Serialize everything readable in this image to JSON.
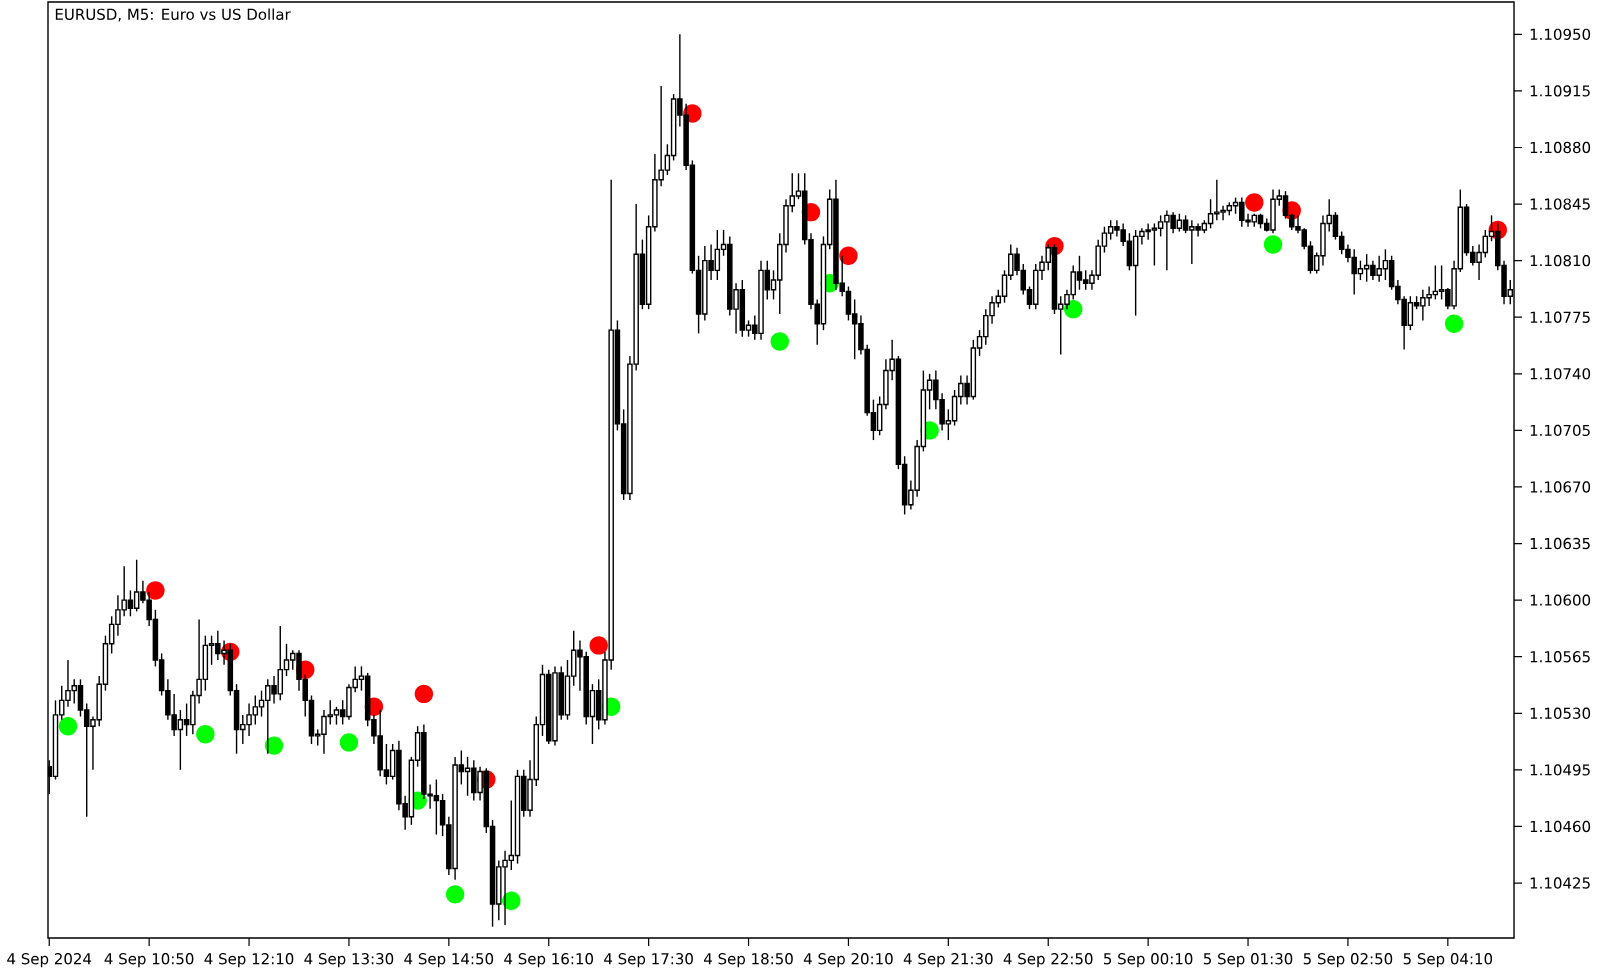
{
  "chart_data": {
    "type": "candlestick",
    "title": "EURUSD, M5: Euro vs US Dollar",
    "x": [
      "2024-09-04T09:30",
      "2024-09-04T09:35",
      "2024-09-04T09:40",
      "2024-09-04T09:45",
      "2024-09-04T09:50",
      "2024-09-04T09:55",
      "2024-09-04T10:00",
      "2024-09-04T10:05",
      "2024-09-04T10:10",
      "2024-09-04T10:15",
      "2024-09-04T10:20",
      "2024-09-04T10:25",
      "2024-09-04T10:30",
      "2024-09-04T10:35",
      "2024-09-04T10:40",
      "2024-09-04T10:45",
      "2024-09-04T10:50",
      "2024-09-04T10:55",
      "2024-09-04T11:00",
      "2024-09-04T11:05",
      "2024-09-04T11:10",
      "2024-09-04T11:15",
      "2024-09-04T11:20",
      "2024-09-04T11:25",
      "2024-09-04T11:30",
      "2024-09-04T11:35",
      "2024-09-04T11:40",
      "2024-09-04T11:45",
      "2024-09-04T11:50",
      "2024-09-04T11:55",
      "2024-09-04T12:00",
      "2024-09-04T12:05",
      "2024-09-04T12:10",
      "2024-09-04T12:15",
      "2024-09-04T12:20",
      "2024-09-04T12:25",
      "2024-09-04T12:30",
      "2024-09-04T12:35",
      "2024-09-04T12:40",
      "2024-09-04T12:45",
      "2024-09-04T12:50",
      "2024-09-04T12:55",
      "2024-09-04T13:00",
      "2024-09-04T13:05",
      "2024-09-04T13:10",
      "2024-09-04T13:15",
      "2024-09-04T13:20",
      "2024-09-04T13:25",
      "2024-09-04T13:30",
      "2024-09-04T13:35",
      "2024-09-04T13:40",
      "2024-09-04T13:45",
      "2024-09-04T13:50",
      "2024-09-04T13:55",
      "2024-09-04T14:00",
      "2024-09-04T14:05",
      "2024-09-04T14:10",
      "2024-09-04T14:15",
      "2024-09-04T14:20",
      "2024-09-04T14:25",
      "2024-09-04T14:30",
      "2024-09-04T14:35",
      "2024-09-04T14:40",
      "2024-09-04T14:45",
      "2024-09-04T14:50",
      "2024-09-04T14:55",
      "2024-09-04T15:00",
      "2024-09-04T15:05",
      "2024-09-04T15:10",
      "2024-09-04T15:15",
      "2024-09-04T15:20",
      "2024-09-04T15:25",
      "2024-09-04T15:30",
      "2024-09-04T15:35",
      "2024-09-04T15:40",
      "2024-09-04T15:45",
      "2024-09-04T15:50",
      "2024-09-04T15:55",
      "2024-09-04T16:00",
      "2024-09-04T16:05",
      "2024-09-04T16:10",
      "2024-09-04T16:15",
      "2024-09-04T16:20",
      "2024-09-04T16:25",
      "2024-09-04T16:30",
      "2024-09-04T16:35",
      "2024-09-04T16:40",
      "2024-09-04T16:45",
      "2024-09-04T16:50",
      "2024-09-04T16:55",
      "2024-09-04T17:00",
      "2024-09-04T17:05",
      "2024-09-04T17:10",
      "2024-09-04T17:15",
      "2024-09-04T17:20",
      "2024-09-04T17:25",
      "2024-09-04T17:30",
      "2024-09-04T17:35",
      "2024-09-04T17:40",
      "2024-09-04T17:45",
      "2024-09-04T17:50",
      "2024-09-04T17:55",
      "2024-09-04T18:00",
      "2024-09-04T18:05",
      "2024-09-04T18:10",
      "2024-09-04T18:15",
      "2024-09-04T18:20",
      "2024-09-04T18:25",
      "2024-09-04T18:30",
      "2024-09-04T18:35",
      "2024-09-04T18:40",
      "2024-09-04T18:45",
      "2024-09-04T18:50",
      "2024-09-04T18:55",
      "2024-09-04T19:00",
      "2024-09-04T19:05",
      "2024-09-04T19:10",
      "2024-09-04T19:15",
      "2024-09-04T19:20",
      "2024-09-04T19:25",
      "2024-09-04T19:30",
      "2024-09-04T19:35",
      "2024-09-04T19:40",
      "2024-09-04T19:45",
      "2024-09-04T19:50",
      "2024-09-04T19:55",
      "2024-09-04T20:00",
      "2024-09-04T20:05",
      "2024-09-04T20:10",
      "2024-09-04T20:15",
      "2024-09-04T20:20",
      "2024-09-04T20:25",
      "2024-09-04T20:30",
      "2024-09-04T20:35",
      "2024-09-04T20:40",
      "2024-09-04T20:45",
      "2024-09-04T20:50",
      "2024-09-04T20:55",
      "2024-09-04T21:00",
      "2024-09-04T21:05",
      "2024-09-04T21:10",
      "2024-09-04T21:15",
      "2024-09-04T21:20",
      "2024-09-04T21:25",
      "2024-09-04T21:30",
      "2024-09-04T21:35",
      "2024-09-04T21:40",
      "2024-09-04T21:45",
      "2024-09-04T21:50",
      "2024-09-04T21:55",
      "2024-09-04T22:00",
      "2024-09-04T22:05",
      "2024-09-04T22:10",
      "2024-09-04T22:15",
      "2024-09-04T22:20",
      "2024-09-04T22:25",
      "2024-09-04T22:30",
      "2024-09-04T22:35",
      "2024-09-04T22:40",
      "2024-09-04T22:45",
      "2024-09-04T22:50",
      "2024-09-04T22:55",
      "2024-09-04T23:00",
      "2024-09-04T23:05",
      "2024-09-04T23:10",
      "2024-09-04T23:15",
      "2024-09-04T23:20",
      "2024-09-04T23:25",
      "2024-09-04T23:30",
      "2024-09-04T23:35",
      "2024-09-04T23:40",
      "2024-09-04T23:45",
      "2024-09-04T23:50",
      "2024-09-04T23:55",
      "2024-09-05T00:00",
      "2024-09-05T00:05",
      "2024-09-05T00:10",
      "2024-09-05T00:15",
      "2024-09-05T00:20",
      "2024-09-05T00:25",
      "2024-09-05T00:30",
      "2024-09-05T00:35",
      "2024-09-05T00:40",
      "2024-09-05T00:45",
      "2024-09-05T00:50",
      "2024-09-05T00:55",
      "2024-09-05T01:00",
      "2024-09-05T01:05",
      "2024-09-05T01:10",
      "2024-09-05T01:15",
      "2024-09-05T01:20",
      "2024-09-05T01:25",
      "2024-09-05T01:30",
      "2024-09-05T01:35",
      "2024-09-05T01:40",
      "2024-09-05T01:45",
      "2024-09-05T01:50",
      "2024-09-05T01:55",
      "2024-09-05T02:00",
      "2024-09-05T02:05",
      "2024-09-05T02:10",
      "2024-09-05T02:15",
      "2024-09-05T02:20",
      "2024-09-05T02:25",
      "2024-09-05T02:30",
      "2024-09-05T02:35",
      "2024-09-05T02:40",
      "2024-09-05T02:45",
      "2024-09-05T02:50",
      "2024-09-05T02:55",
      "2024-09-05T03:00",
      "2024-09-05T03:05",
      "2024-09-05T03:10",
      "2024-09-05T03:15",
      "2024-09-05T03:20",
      "2024-09-05T03:25",
      "2024-09-05T03:30",
      "2024-09-05T03:35",
      "2024-09-05T03:40",
      "2024-09-05T03:45",
      "2024-09-05T03:50",
      "2024-09-05T03:55",
      "2024-09-05T04:00",
      "2024-09-05T04:05",
      "2024-09-05T04:10",
      "2024-09-05T04:15",
      "2024-09-05T04:20",
      "2024-09-05T04:25",
      "2024-09-05T04:30",
      "2024-09-05T04:35",
      "2024-09-05T04:40",
      "2024-09-05T04:45",
      "2024-09-05T04:50",
      "2024-09-05T04:55",
      "2024-09-05T05:00"
    ],
    "ohlc": [
      [
        1.10497,
        1.10501,
        1.1048,
        1.10491
      ],
      [
        1.10491,
        1.10538,
        1.10489,
        1.10529
      ],
      [
        1.10529,
        1.10547,
        1.10526,
        1.10538
      ],
      [
        1.10538,
        1.10563,
        1.10534,
        1.10544
      ],
      [
        1.10544,
        1.10551,
        1.10536,
        1.10547
      ],
      [
        1.10547,
        1.10551,
        1.10528,
        1.10532
      ],
      [
        1.10532,
        1.10536,
        1.10466,
        1.10522
      ],
      [
        1.10522,
        1.10528,
        1.10495,
        1.10526
      ],
      [
        1.10526,
        1.10553,
        1.10522,
        1.10548
      ],
      [
        1.10548,
        1.10578,
        1.10544,
        1.10573
      ],
      [
        1.10573,
        1.1059,
        1.10567,
        1.10585
      ],
      [
        1.10585,
        1.10603,
        1.10578,
        1.10594
      ],
      [
        1.10594,
        1.10621,
        1.1059,
        1.106
      ],
      [
        1.106,
        1.10606,
        1.1059,
        1.10595
      ],
      [
        1.10595,
        1.10625,
        1.10593,
        1.10605
      ],
      [
        1.10605,
        1.10612,
        1.10598,
        1.106
      ],
      [
        1.106,
        1.10605,
        1.10584,
        1.10588
      ],
      [
        1.10588,
        1.10594,
        1.10559,
        1.10563
      ],
      [
        1.10563,
        1.10567,
        1.10541,
        1.10544
      ],
      [
        1.10544,
        1.10551,
        1.10526,
        1.10529
      ],
      [
        1.10529,
        1.10542,
        1.10516,
        1.1052
      ],
      [
        1.1052,
        1.10532,
        1.10495,
        1.10526
      ],
      [
        1.10526,
        1.10536,
        1.10516,
        1.10523
      ],
      [
        1.10523,
        1.10544,
        1.10517,
        1.10541
      ],
      [
        1.10541,
        1.10588,
        1.10536,
        1.10551
      ],
      [
        1.10551,
        1.10578,
        1.10544,
        1.10572
      ],
      [
        1.10572,
        1.10578,
        1.1056,
        1.10573
      ],
      [
        1.10573,
        1.10581,
        1.10563,
        1.10567
      ],
      [
        1.10567,
        1.10575,
        1.1056,
        1.10569
      ],
      [
        1.10569,
        1.10573,
        1.10541,
        1.10544
      ],
      [
        1.10544,
        1.10548,
        1.10505,
        1.1052
      ],
      [
        1.1052,
        1.10529,
        1.10511,
        1.10523
      ],
      [
        1.10523,
        1.10536,
        1.10516,
        1.10529
      ],
      [
        1.10529,
        1.10541,
        1.10523,
        1.10534
      ],
      [
        1.10534,
        1.10544,
        1.10528,
        1.10538
      ],
      [
        1.10538,
        1.10551,
        1.10505,
        1.10547
      ],
      [
        1.10547,
        1.10553,
        1.10536,
        1.10542
      ],
      [
        1.10542,
        1.10584,
        1.10538,
        1.10557
      ],
      [
        1.10557,
        1.10573,
        1.10553,
        1.10563
      ],
      [
        1.10563,
        1.10569,
        1.10557,
        1.10567
      ],
      [
        1.10567,
        1.10569,
        1.10544,
        1.10551
      ],
      [
        1.10551,
        1.10554,
        1.10528,
        1.10538
      ],
      [
        1.10538,
        1.10541,
        1.10511,
        1.10516
      ],
      [
        1.10516,
        1.1052,
        1.1051,
        1.10517
      ],
      [
        1.10517,
        1.10532,
        1.10505,
        1.10528
      ],
      [
        1.10528,
        1.10538,
        1.10523,
        1.10529
      ],
      [
        1.10529,
        1.10534,
        1.10523,
        1.10532
      ],
      [
        1.10532,
        1.10538,
        1.10523,
        1.10528
      ],
      [
        1.10528,
        1.10548,
        1.10526,
        1.10546
      ],
      [
        1.10546,
        1.10559,
        1.10543,
        1.10551
      ],
      [
        1.10551,
        1.10559,
        1.10544,
        1.10553
      ],
      [
        1.10553,
        1.10555,
        1.10522,
        1.10526
      ],
      [
        1.10526,
        1.10529,
        1.10511,
        1.10516
      ],
      [
        1.10516,
        1.10532,
        1.10491,
        1.10495
      ],
      [
        1.10495,
        1.10511,
        1.10486,
        1.10491
      ],
      [
        1.10491,
        1.10511,
        1.10489,
        1.10507
      ],
      [
        1.10507,
        1.10513,
        1.1047,
        1.10474
      ],
      [
        1.10474,
        1.10479,
        1.10458,
        1.10466
      ],
      [
        1.10466,
        1.10503,
        1.10461,
        1.10501
      ],
      [
        1.10501,
        1.10522,
        1.10497,
        1.10518
      ],
      [
        1.10518,
        1.10523,
        1.10477,
        1.1048
      ],
      [
        1.1048,
        1.10486,
        1.10471,
        1.10479
      ],
      [
        1.10479,
        1.10489,
        1.10455,
        1.10476
      ],
      [
        1.10476,
        1.1048,
        1.10454,
        1.10461
      ],
      [
        1.10461,
        1.10466,
        1.1043,
        1.10434
      ],
      [
        1.10434,
        1.10503,
        1.10427,
        1.10498
      ],
      [
        1.10498,
        1.10507,
        1.10486,
        1.10494
      ],
      [
        1.10494,
        1.10503,
        1.10479,
        1.10496
      ],
      [
        1.10496,
        1.10501,
        1.10476,
        1.10481
      ],
      [
        1.10481,
        1.10497,
        1.10476,
        1.10494
      ],
      [
        1.10494,
        1.10496,
        1.10456,
        1.1046
      ],
      [
        1.1046,
        1.10464,
        1.10398,
        1.10412
      ],
      [
        1.10412,
        1.10439,
        1.10402,
        1.10435
      ],
      [
        1.10435,
        1.10445,
        1.10399,
        1.10439
      ],
      [
        1.10439,
        1.10476,
        1.10433,
        1.10442
      ],
      [
        1.10442,
        1.10495,
        1.10437,
        1.10491
      ],
      [
        1.10491,
        1.10495,
        1.10466,
        1.1047
      ],
      [
        1.1047,
        1.10501,
        1.10466,
        1.10489
      ],
      [
        1.10489,
        1.10528,
        1.10485,
        1.10523
      ],
      [
        1.10523,
        1.1056,
        1.10516,
        1.10554
      ],
      [
        1.10554,
        1.10557,
        1.10511,
        1.10513
      ],
      [
        1.10513,
        1.10559,
        1.1051,
        1.10555
      ],
      [
        1.10555,
        1.10559,
        1.10526,
        1.10529
      ],
      [
        1.10529,
        1.10563,
        1.10526,
        1.10553
      ],
      [
        1.10553,
        1.10581,
        1.10547,
        1.10569
      ],
      [
        1.10569,
        1.10575,
        1.10544,
        1.10565
      ],
      [
        1.10565,
        1.10568,
        1.10523,
        1.10528
      ],
      [
        1.10528,
        1.10548,
        1.10511,
        1.10544
      ],
      [
        1.10544,
        1.10551,
        1.1052,
        1.10526
      ],
      [
        1.10526,
        1.10568,
        1.10523,
        1.10563
      ],
      [
        1.10563,
        1.1086,
        1.10557,
        1.10767
      ],
      [
        1.10767,
        1.10773,
        1.10705,
        1.10709
      ],
      [
        1.10709,
        1.10718,
        1.10662,
        1.10666
      ],
      [
        1.10666,
        1.10751,
        1.10662,
        1.10746
      ],
      [
        1.10746,
        1.10845,
        1.10742,
        1.10814
      ],
      [
        1.10814,
        1.10823,
        1.1078,
        1.10783
      ],
      [
        1.10783,
        1.10838,
        1.1078,
        1.10831
      ],
      [
        1.10831,
        1.10876,
        1.10828,
        1.1086
      ],
      [
        1.1086,
        1.10918,
        1.10856,
        1.10866
      ],
      [
        1.10866,
        1.10882,
        1.10863,
        1.10875
      ],
      [
        1.10875,
        1.10913,
        1.10872,
        1.1091
      ],
      [
        1.1091,
        1.1095,
        1.10893,
        1.109
      ],
      [
        1.109,
        1.10907,
        1.10866,
        1.10869
      ],
      [
        1.10869,
        1.10872,
        1.10802,
        1.10804
      ],
      [
        1.10804,
        1.10813,
        1.10765,
        1.10777
      ],
      [
        1.10777,
        1.10819,
        1.10773,
        1.1081
      ],
      [
        1.1081,
        1.1082,
        1.10798,
        1.10804
      ],
      [
        1.10804,
        1.10829,
        1.10798,
        1.10817
      ],
      [
        1.10817,
        1.10829,
        1.10813,
        1.1082
      ],
      [
        1.1082,
        1.10825,
        1.10776,
        1.1078
      ],
      [
        1.1078,
        1.10796,
        1.10765,
        1.10792
      ],
      [
        1.10792,
        1.10798,
        1.10763,
        1.10767
      ],
      [
        1.10767,
        1.10773,
        1.10763,
        1.1077
      ],
      [
        1.1077,
        1.10776,
        1.10761,
        1.10765
      ],
      [
        1.10765,
        1.1081,
        1.10761,
        1.10804
      ],
      [
        1.10804,
        1.1081,
        1.10786,
        1.10792
      ],
      [
        1.10792,
        1.10804,
        1.10786,
        1.10798
      ],
      [
        1.10798,
        1.10827,
        1.10777,
        1.1082
      ],
      [
        1.1082,
        1.10848,
        1.10815,
        1.10844
      ],
      [
        1.10844,
        1.10864,
        1.1084,
        1.1085
      ],
      [
        1.1085,
        1.10864,
        1.10848,
        1.10853
      ],
      [
        1.10853,
        1.10864,
        1.1082,
        1.10823
      ],
      [
        1.10823,
        1.10827,
        1.1078,
        1.10783
      ],
      [
        1.10783,
        1.10786,
        1.10758,
        1.10771
      ],
      [
        1.10771,
        1.10825,
        1.10767,
        1.1082
      ],
      [
        1.1082,
        1.10854,
        1.10817,
        1.10848
      ],
      [
        1.10848,
        1.1086,
        1.10792,
        1.10796
      ],
      [
        1.10796,
        1.10813,
        1.10788,
        1.10791
      ],
      [
        1.10791,
        1.10794,
        1.10773,
        1.10777
      ],
      [
        1.10777,
        1.10786,
        1.10749,
        1.10771
      ],
      [
        1.10771,
        1.10776,
        1.10752,
        1.10755
      ],
      [
        1.10755,
        1.10758,
        1.10714,
        1.10716
      ],
      [
        1.10716,
        1.10724,
        1.10699,
        1.10705
      ],
      [
        1.10705,
        1.10726,
        1.10702,
        1.10721
      ],
      [
        1.10721,
        1.10749,
        1.10718,
        1.10742
      ],
      [
        1.10742,
        1.10761,
        1.10736,
        1.10749
      ],
      [
        1.10749,
        1.10751,
        1.10681,
        1.10684
      ],
      [
        1.10684,
        1.10689,
        1.10653,
        1.10659
      ],
      [
        1.10659,
        1.10674,
        1.10656,
        1.10668
      ],
      [
        1.10668,
        1.10699,
        1.10664,
        1.10695
      ],
      [
        1.10695,
        1.10742,
        1.10692,
        1.1073
      ],
      [
        1.1073,
        1.1074,
        1.10718,
        1.10736
      ],
      [
        1.10736,
        1.10742,
        1.10718,
        1.10724
      ],
      [
        1.10724,
        1.10728,
        1.10705,
        1.10709
      ],
      [
        1.10709,
        1.10718,
        1.10699,
        1.10711
      ],
      [
        1.10711,
        1.1073,
        1.10708,
        1.10726
      ],
      [
        1.10726,
        1.10739,
        1.10721,
        1.10734
      ],
      [
        1.10734,
        1.10739,
        1.10721,
        1.10726
      ],
      [
        1.10726,
        1.10761,
        1.10724,
        1.10756
      ],
      [
        1.10756,
        1.10767,
        1.10751,
        1.10763
      ],
      [
        1.10763,
        1.1078,
        1.10758,
        1.10776
      ],
      [
        1.10776,
        1.10788,
        1.10771,
        1.10784
      ],
      [
        1.10784,
        1.10792,
        1.10781,
        1.10788
      ],
      [
        1.10788,
        1.10804,
        1.10784,
        1.10801
      ],
      [
        1.10801,
        1.1082,
        1.10798,
        1.10814
      ],
      [
        1.10814,
        1.10818,
        1.10801,
        1.10804
      ],
      [
        1.10804,
        1.10808,
        1.10789,
        1.10792
      ],
      [
        1.10792,
        1.10794,
        1.1078,
        1.10783
      ],
      [
        1.10783,
        1.10808,
        1.1078,
        1.10804
      ],
      [
        1.10804,
        1.10813,
        1.10798,
        1.10809
      ],
      [
        1.10809,
        1.1082,
        1.10804,
        1.10818
      ],
      [
        1.10818,
        1.1082,
        1.10777,
        1.1078
      ],
      [
        1.1078,
        1.10788,
        1.10752,
        1.10783
      ],
      [
        1.10783,
        1.10792,
        1.1078,
        1.10789
      ],
      [
        1.10789,
        1.10807,
        1.10786,
        1.10803
      ],
      [
        1.10803,
        1.10813,
        1.10792,
        1.10798
      ],
      [
        1.10798,
        1.10804,
        1.10792,
        1.10796
      ],
      [
        1.10796,
        1.10804,
        1.10792,
        1.10801
      ],
      [
        1.10801,
        1.10823,
        1.10798,
        1.10819
      ],
      [
        1.10819,
        1.10831,
        1.10815,
        1.10827
      ],
      [
        1.10827,
        1.10835,
        1.10823,
        1.10831
      ],
      [
        1.10831,
        1.10835,
        1.10825,
        1.10829
      ],
      [
        1.10829,
        1.10833,
        1.10819,
        1.10822
      ],
      [
        1.10822,
        1.10827,
        1.10804,
        1.10807
      ],
      [
        1.10807,
        1.10829,
        1.10776,
        1.10825
      ],
      [
        1.10825,
        1.1083,
        1.1082,
        1.10828
      ],
      [
        1.10828,
        1.10833,
        1.10823,
        1.10829
      ],
      [
        1.10829,
        1.10833,
        1.10807,
        1.1083
      ],
      [
        1.1083,
        1.10838,
        1.10825,
        1.10834
      ],
      [
        1.10834,
        1.10841,
        1.10804,
        1.10838
      ],
      [
        1.10838,
        1.1084,
        1.10827,
        1.1083
      ],
      [
        1.1083,
        1.10839,
        1.10828,
        1.10835
      ],
      [
        1.10835,
        1.10838,
        1.10827,
        1.10829
      ],
      [
        1.10829,
        1.10835,
        1.10808,
        1.10831
      ],
      [
        1.10831,
        1.10833,
        1.10825,
        1.10829
      ],
      [
        1.10829,
        1.10835,
        1.10827,
        1.10833
      ],
      [
        1.10833,
        1.10848,
        1.1083,
        1.10839
      ],
      [
        1.10839,
        1.1086,
        1.10835,
        1.1084
      ],
      [
        1.1084,
        1.10844,
        1.10835,
        1.10841
      ],
      [
        1.10841,
        1.10846,
        1.10838,
        1.10844
      ],
      [
        1.10844,
        1.10849,
        1.10839,
        1.10846
      ],
      [
        1.10846,
        1.10849,
        1.10831,
        1.10835
      ],
      [
        1.10835,
        1.10839,
        1.10831,
        1.10834
      ],
      [
        1.10834,
        1.10839,
        1.10831,
        1.10838
      ],
      [
        1.10838,
        1.10839,
        1.1083,
        1.10833
      ],
      [
        1.10833,
        1.10836,
        1.10828,
        1.10829
      ],
      [
        1.10829,
        1.10854,
        1.10827,
        1.10848
      ],
      [
        1.10848,
        1.10854,
        1.10844,
        1.1085
      ],
      [
        1.1085,
        1.10853,
        1.10836,
        1.10838
      ],
      [
        1.10838,
        1.10839,
        1.10829,
        1.10831
      ],
      [
        1.10831,
        1.10838,
        1.10827,
        1.10829
      ],
      [
        1.10829,
        1.1083,
        1.10817,
        1.10819
      ],
      [
        1.10819,
        1.10822,
        1.10802,
        1.10804
      ],
      [
        1.10804,
        1.10815,
        1.10802,
        1.10813
      ],
      [
        1.10813,
        1.10838,
        1.10807,
        1.10833
      ],
      [
        1.10833,
        1.10848,
        1.10828,
        1.10838
      ],
      [
        1.10838,
        1.1084,
        1.10823,
        1.10825
      ],
      [
        1.10825,
        1.10828,
        1.10814,
        1.10817
      ],
      [
        1.10817,
        1.1082,
        1.10809,
        1.10812
      ],
      [
        1.10812,
        1.10817,
        1.10789,
        1.10802
      ],
      [
        1.10802,
        1.1081,
        1.10798,
        1.10805
      ],
      [
        1.10805,
        1.10814,
        1.10797,
        1.10807
      ],
      [
        1.10807,
        1.1081,
        1.10798,
        1.10801
      ],
      [
        1.10801,
        1.10813,
        1.10797,
        1.10805
      ],
      [
        1.10805,
        1.10817,
        1.10798,
        1.1081
      ],
      [
        1.1081,
        1.10813,
        1.10792,
        1.10794
      ],
      [
        1.10794,
        1.10798,
        1.10783,
        1.10786
      ],
      [
        1.10786,
        1.10788,
        1.10755,
        1.1077
      ],
      [
        1.1077,
        1.10788,
        1.10767,
        1.10784
      ],
      [
        1.10784,
        1.10788,
        1.1078,
        1.10782
      ],
      [
        1.10782,
        1.10792,
        1.10773,
        1.10787
      ],
      [
        1.10787,
        1.10794,
        1.10782,
        1.10789
      ],
      [
        1.10789,
        1.10807,
        1.10786,
        1.10791
      ],
      [
        1.10791,
        1.10807,
        1.10786,
        1.10792
      ],
      [
        1.10792,
        1.10793,
        1.1078,
        1.10782
      ],
      [
        1.10782,
        1.1081,
        1.1078,
        1.10805
      ],
      [
        1.10805,
        1.10854,
        1.10803,
        1.10843
      ],
      [
        1.10843,
        1.10845,
        1.10813,
        1.10815
      ],
      [
        1.10815,
        1.10819,
        1.10807,
        1.10809
      ],
      [
        1.10809,
        1.1082,
        1.10798,
        1.10815
      ],
      [
        1.10815,
        1.10829,
        1.10812,
        1.10825
      ],
      [
        1.10825,
        1.10838,
        1.10822,
        1.10828
      ],
      [
        1.10828,
        1.10833,
        1.10804,
        1.10807
      ],
      [
        1.10807,
        1.1081,
        1.10783,
        1.10788
      ],
      [
        1.10788,
        1.10798,
        1.10783,
        1.10792
      ]
    ],
    "series": [
      {
        "type": "scatter",
        "color": "#ff0000",
        "marker": "circle",
        "x": [
          "2024-09-04T10:55",
          "2024-09-04T11:55",
          "2024-09-04T12:55",
          "2024-09-04T13:50",
          "2024-09-04T14:30",
          "2024-09-04T15:20",
          "2024-09-04T16:50",
          "2024-09-04T18:05",
          "2024-09-04T19:40",
          "2024-09-04T20:10",
          "2024-09-04T22:55",
          "2024-09-05T01:35",
          "2024-09-05T02:05",
          "2024-09-05T04:50"
        ],
        "values": [
          1.10606,
          1.10568,
          1.10557,
          1.10534,
          1.10542,
          1.10489,
          1.10572,
          1.10901,
          1.1084,
          1.10813,
          1.10819,
          1.10846,
          1.10841,
          1.10829
        ]
      },
      {
        "type": "scatter",
        "color": "#00ff00",
        "marker": "circle",
        "x": [
          "2024-09-04T09:45",
          "2024-09-04T11:35",
          "2024-09-04T12:30",
          "2024-09-04T13:30",
          "2024-09-04T14:25",
          "2024-09-04T14:55",
          "2024-09-04T15:40",
          "2024-09-04T17:00",
          "2024-09-04T19:15",
          "2024-09-04T19:55",
          "2024-09-04T21:15",
          "2024-09-04T23:10",
          "2024-09-05T01:50",
          "2024-09-05T04:15"
        ],
        "values": [
          1.10522,
          1.10517,
          1.1051,
          1.10512,
          1.10476,
          1.10418,
          1.10414,
          1.10534,
          1.1076,
          1.10796,
          1.10705,
          1.1078,
          1.1082,
          1.10771
        ]
      }
    ],
    "xlim": [
      "2024-09-04T09:29",
      "2024-09-05T05:03"
    ],
    "xticks": [
      {
        "value": "2024-09-04T09:30",
        "label": "4 Sep 2024"
      },
      {
        "value": "2024-09-04T10:50",
        "label": "4 Sep 10:50"
      },
      {
        "value": "2024-09-04T12:10",
        "label": "4 Sep 12:10"
      },
      {
        "value": "2024-09-04T13:30",
        "label": "4 Sep 13:30"
      },
      {
        "value": "2024-09-04T14:50",
        "label": "4 Sep 14:50"
      },
      {
        "value": "2024-09-04T16:10",
        "label": "4 Sep 16:10"
      },
      {
        "value": "2024-09-04T17:30",
        "label": "4 Sep 17:30"
      },
      {
        "value": "2024-09-04T18:50",
        "label": "4 Sep 18:50"
      },
      {
        "value": "2024-09-04T20:10",
        "label": "4 Sep 20:10"
      },
      {
        "value": "2024-09-04T21:30",
        "label": "4 Sep 21:30"
      },
      {
        "value": "2024-09-04T22:50",
        "label": "4 Sep 22:50"
      },
      {
        "value": "2024-09-05T00:10",
        "label": "5 Sep 00:10"
      },
      {
        "value": "2024-09-05T01:30",
        "label": "5 Sep 01:30"
      },
      {
        "value": "2024-09-05T02:50",
        "label": "5 Sep 02:50"
      },
      {
        "value": "2024-09-05T04:10",
        "label": "5 Sep 04:10"
      }
    ],
    "ylim": [
      1.10391,
      1.1097
    ],
    "yticks": [
      {
        "value": 1.1095,
        "label": "1.10950"
      },
      1.10915,
      {
        "value": 1.1088,
        "label": "1.10880"
      },
      1.10845,
      {
        "value": 1.1081,
        "label": "1.10810"
      },
      1.10775,
      {
        "value": 1.1074,
        "label": "1.10740"
      },
      1.10705,
      {
        "value": 1.1067,
        "label": "1.10670"
      },
      1.10635,
      {
        "value": 1.106,
        "label": "1.10600"
      },
      1.10565,
      {
        "value": 1.1053,
        "label": "1.10530"
      },
      1.10495,
      {
        "value": 1.1046,
        "label": "1.10460"
      },
      1.10425
    ]
  }
}
